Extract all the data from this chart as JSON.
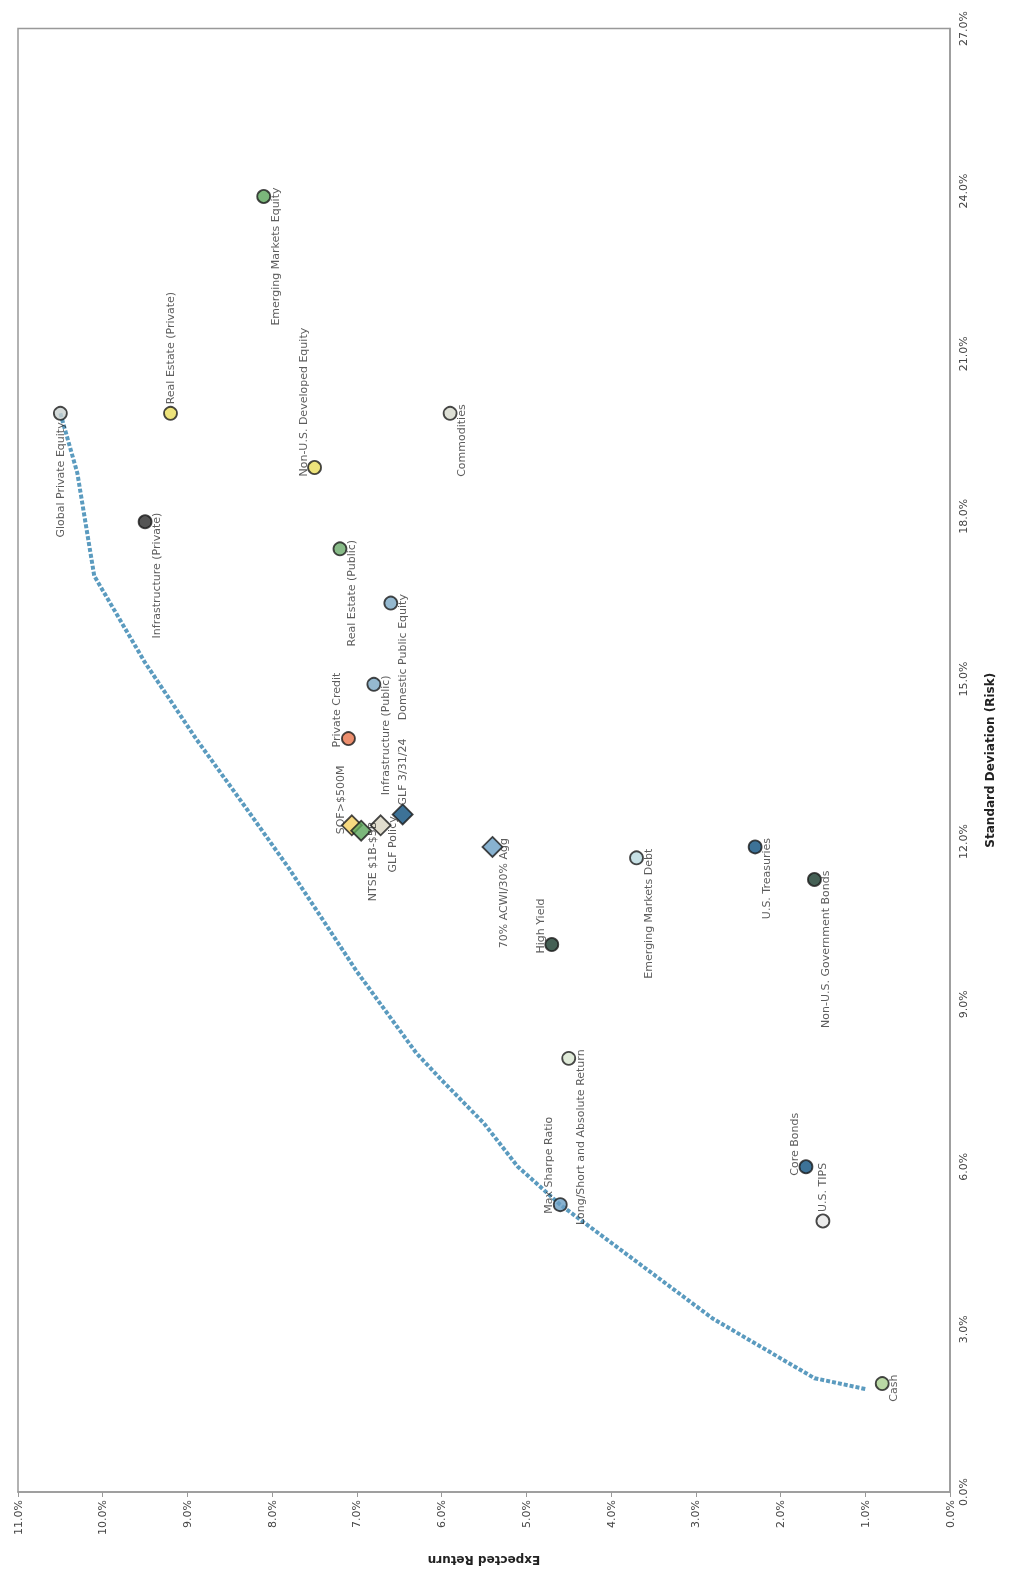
{
  "chart_data": {
    "type": "scatter",
    "xlabel": "Expected Return",
    "ylabel": "Standard Deviation (Risk)",
    "xlim": [
      11,
      0
    ],
    "ylim": [
      0,
      27
    ],
    "xticks": [
      {
        "value": 0,
        "label": "0.0%"
      },
      {
        "value": 1,
        "label": "1.0%"
      },
      {
        "value": 2,
        "label": "2.0%"
      },
      {
        "value": 3,
        "label": "3.0%"
      },
      {
        "value": 4,
        "label": "4.0%"
      },
      {
        "value": 5,
        "label": "5.0%"
      },
      {
        "value": 6,
        "label": "6.0%"
      },
      {
        "value": 7,
        "label": "7.0%"
      },
      {
        "value": 8,
        "label": "8.0%"
      },
      {
        "value": 9,
        "label": "9.0%"
      },
      {
        "value": 10,
        "label": "10.0%"
      },
      {
        "value": 11,
        "label": "11.0%"
      }
    ],
    "yticks": [
      {
        "value": 0,
        "label": "0.0%"
      },
      {
        "value": 3,
        "label": "3.0%"
      },
      {
        "value": 6,
        "label": "6.0%"
      },
      {
        "value": 9,
        "label": "9.0%"
      },
      {
        "value": 12,
        "label": "12.0%"
      },
      {
        "value": 15,
        "label": "15.0%"
      },
      {
        "value": 18,
        "label": "18.0%"
      },
      {
        "value": 21,
        "label": "21.0%"
      },
      {
        "value": 24,
        "label": "24.0%"
      },
      {
        "value": 27,
        "label": "27.0%"
      }
    ],
    "legend": false,
    "series": [
      {
        "type": "line",
        "color": "#5b9bbf",
        "line_style": "dotted",
        "marker": "none",
        "x": [
          10.5,
          10.3,
          10.1,
          9.5,
          8.9,
          8.3,
          7.8,
          7.0,
          6.3,
          6.0,
          5.5,
          5.1,
          4.6,
          4.0,
          3.4,
          2.8,
          2.2,
          1.6,
          1.0
        ],
        "values": [
          19.9,
          18.8,
          16.9,
          15.3,
          13.9,
          12.6,
          11.5,
          9.6,
          8.1,
          7.6,
          6.8,
          6.0,
          5.3,
          4.6,
          3.9,
          3.2,
          2.65,
          2.1,
          1.9
        ]
      },
      {
        "name": "Global Private Equity",
        "color": "#c9d1cf",
        "marker": "circle",
        "x": [
          10.5
        ],
        "values": [
          19.9
        ]
      },
      {
        "name": "Real Estate (Private)",
        "color": "#e8dc5a",
        "marker": "circle",
        "x": [
          9.2
        ],
        "values": [
          19.9
        ]
      },
      {
        "name": "Emerging Markets Equity",
        "color": "#5aa55a",
        "marker": "circle",
        "x": [
          8.1
        ],
        "values": [
          23.9
        ]
      },
      {
        "name": "Non-U.S. Developed Equity",
        "color": "#e8dc5a",
        "marker": "circle",
        "x": [
          7.5
        ],
        "values": [
          18.9
        ]
      },
      {
        "name": "Infrastructure (Private)",
        "color": "#2a2a2a",
        "marker": "circle",
        "x": [
          9.5
        ],
        "values": [
          17.9
        ]
      },
      {
        "name": "Real Estate (Public)",
        "color": "#6aaa6a",
        "marker": "circle",
        "x": [
          7.2
        ],
        "values": [
          17.4
        ]
      },
      {
        "name": "Commodities",
        "color": "#d6d8cc",
        "marker": "circle",
        "x": [
          5.9
        ],
        "values": [
          19.9
        ]
      },
      {
        "name": "Domestic Public Equity",
        "color": "#7aa7c4",
        "marker": "circle",
        "x": [
          6.6
        ],
        "values": [
          16.4
        ]
      },
      {
        "name": "Infrastructure (Public)",
        "color": "#7aa7c4",
        "marker": "circle",
        "x": [
          6.8
        ],
        "values": [
          14.9
        ]
      },
      {
        "name": "Private Credit",
        "color": "#e8734a",
        "marker": "circle",
        "x": [
          7.1
        ],
        "values": [
          13.9
        ]
      },
      {
        "name": "SOF>$500M",
        "color": "#f5d060",
        "marker": "diamond",
        "x": [
          7.06
        ],
        "values": [
          12.3
        ]
      },
      {
        "name": "NTSE $1B-$5B",
        "color": "#5aa55a",
        "marker": "diamond",
        "x": [
          6.95
        ],
        "values": [
          12.2
        ]
      },
      {
        "name": "GLF Policy",
        "color": "#d9d4c2",
        "marker": "diamond",
        "x": [
          6.72
        ],
        "values": [
          12.3
        ]
      },
      {
        "name": "GLF 3/31/24",
        "color": "#0d4f7d",
        "marker": "diamond",
        "x": [
          6.46
        ],
        "values": [
          12.5
        ]
      },
      {
        "name": "70% ACWI/30% Agg",
        "color": "#6a9fc4",
        "marker": "diamond",
        "x": [
          5.4
        ],
        "values": [
          11.9
        ]
      },
      {
        "name": "Emerging Markets Debt",
        "color": "#b9d9e0",
        "marker": "circle",
        "x": [
          3.7
        ],
        "values": [
          11.7
        ]
      },
      {
        "name": "U.S. Treasuries",
        "color": "#0d4f7d",
        "marker": "circle",
        "x": [
          2.3
        ],
        "values": [
          11.9
        ]
      },
      {
        "name": "Non-U.S. Government Bonds",
        "color": "#16382a",
        "marker": "circle",
        "x": [
          1.6
        ],
        "values": [
          11.3
        ]
      },
      {
        "name": "High Yield",
        "color": "#16382a",
        "marker": "circle",
        "x": [
          4.7
        ],
        "values": [
          10.1
        ]
      },
      {
        "name": "Long/Short and Absolute Return",
        "color": "#d8e6d0",
        "marker": "circle",
        "x": [
          4.5
        ],
        "values": [
          8.0
        ]
      },
      {
        "name": "Max Sharpe Ratio",
        "color": "#6a9fc4",
        "marker": "circle",
        "x": [
          4.6
        ],
        "values": [
          5.3
        ]
      },
      {
        "name": "Core Bonds",
        "color": "#0d4f7d",
        "marker": "circle",
        "x": [
          1.7
        ],
        "values": [
          6.0
        ]
      },
      {
        "name": "U.S. TIPS",
        "color": "#e6e6e6",
        "marker": "circle",
        "x": [
          1.5
        ],
        "values": [
          5.0
        ]
      },
      {
        "name": "Cash",
        "color": "#a9d08e",
        "marker": "circle",
        "x": [
          0.8
        ],
        "values": [
          2.0
        ]
      }
    ]
  }
}
